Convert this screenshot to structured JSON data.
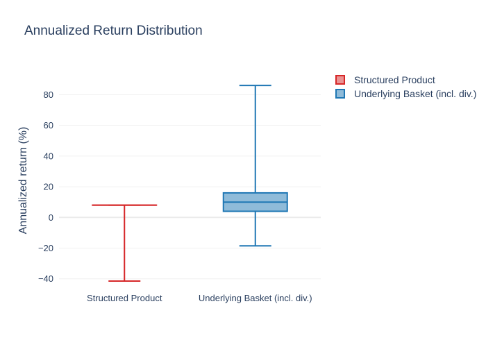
{
  "chart_data": {
    "type": "box",
    "title": "Annualized Return Distribution",
    "xlabel": "",
    "ylabel": "Annualized return (%)",
    "ylim": [
      -46,
      101
    ],
    "yticks": [
      -40,
      -20,
      0,
      20,
      40,
      60,
      80
    ],
    "ytick_labels": [
      "−40",
      "−20",
      "0",
      "20",
      "40",
      "60",
      "80"
    ],
    "grid": true,
    "legend_position": "top-right",
    "categories": [
      "Structured Product",
      "Underlying Basket (incl. div.)"
    ],
    "series": [
      {
        "name": "Structured Product",
        "category": "Structured Product",
        "color": "#d62728",
        "fill": "rgba(214,39,40,0.5)",
        "min": -41.5,
        "q1": 8,
        "median": 8,
        "q3": 8,
        "max": 8
      },
      {
        "name": "Underlying Basket (incl. div.)",
        "category": "Underlying Basket (incl. div.)",
        "color": "#1f77b4",
        "fill": "rgba(31,119,180,0.5)",
        "min": -18.5,
        "q1": 4,
        "median": 10,
        "q3": 16,
        "max": 86
      }
    ]
  }
}
